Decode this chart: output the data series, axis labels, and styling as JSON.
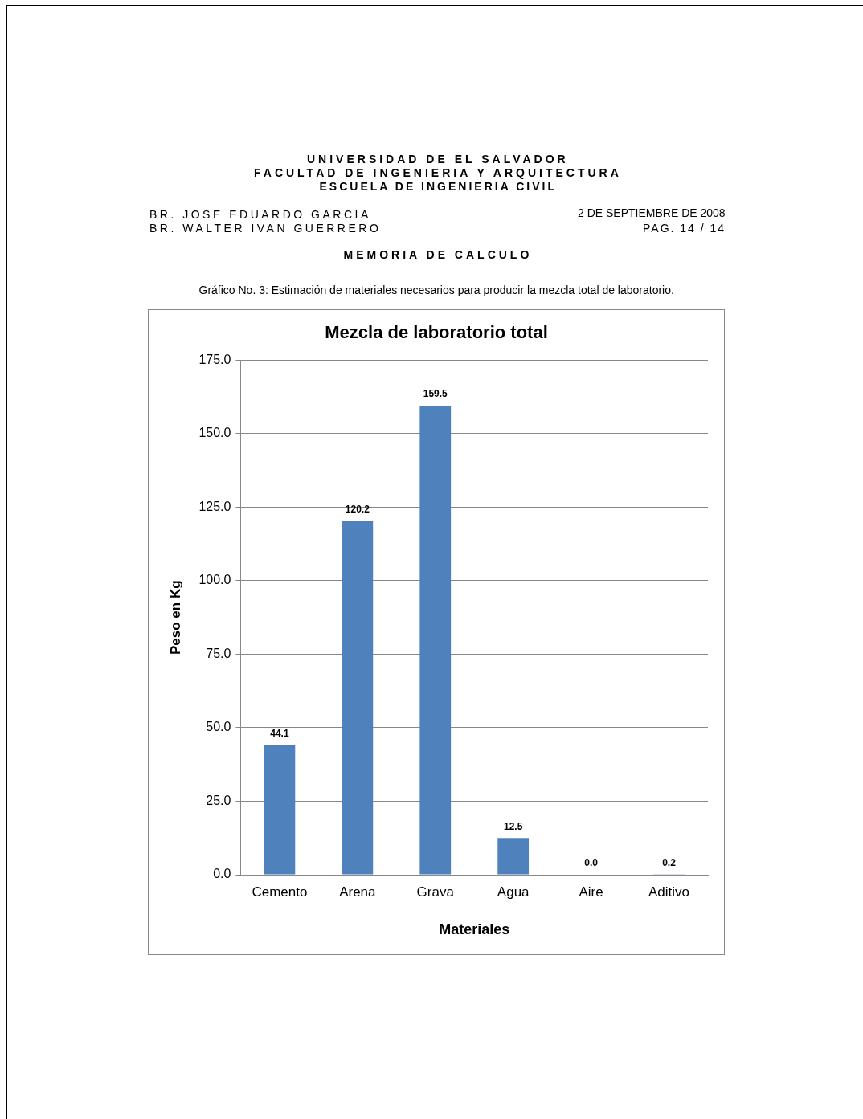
{
  "chart_data": {
    "type": "bar",
    "title": "Mezcla de laboratorio total",
    "xlabel": "Materiales",
    "ylabel": "Peso en Kg",
    "categories": [
      "Cemento",
      "Arena",
      "Grava",
      "Agua",
      "Aire",
      "Aditivo"
    ],
    "values": [
      44.1,
      120.2,
      159.5,
      12.5,
      0.0,
      0.2
    ],
    "value_labels": [
      "44.1",
      "120.2",
      "159.5",
      "12.5",
      "0.0",
      "0.2"
    ],
    "color": "#4f81bd",
    "ylim": [
      0,
      175
    ],
    "yticks": [
      {
        "value": 0,
        "label": "0.0"
      },
      {
        "value": 25,
        "label": "25.0"
      },
      {
        "value": 50,
        "label": "50.0"
      },
      {
        "value": 75,
        "label": "75.0"
      },
      {
        "value": 100,
        "label": "100.0"
      },
      {
        "value": 125,
        "label": "125.0"
      },
      {
        "value": 150,
        "label": "150.0"
      },
      {
        "value": 175,
        "label": "175.0"
      }
    ],
    "grid": "y",
    "legend": false,
    "annotations": [
      "UNIVERSIDAD DE EL SALVADOR",
      "FACULTAD DE INGENIERIA Y ARQUITECTURA",
      "ESCUELA DE INGENIERIA CIVIL",
      "BR. JOSE EDUARDO GARCIA",
      "BR. WALTER IVAN GUERRERO",
      "2 DE SEPTIEMBRE DE 2008",
      "PAG. 14 / 14",
      "MEMORIA DE CALCULO",
      "Gráfico No. 3: Estimación de materiales necesarios para producir la mezcla total de laboratorio."
    ]
  }
}
